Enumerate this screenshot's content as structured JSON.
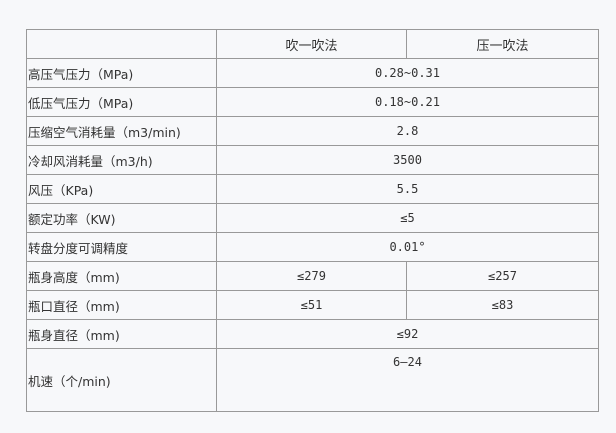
{
  "header": {
    "blank": "",
    "col1": "吹一吹法",
    "col2": "压一吹法"
  },
  "rows": [
    {
      "label": "高压气压力（MPa)",
      "value": "0.28~0.31"
    },
    {
      "label": "低压气压力（MPa)",
      "value": "0.18~0.21"
    },
    {
      "label": "压缩空气消耗量（m3/min)",
      "value": "2.8"
    },
    {
      "label": "冷却风消耗量（m3/h)",
      "value": "3500"
    },
    {
      "label": "风压（KPa)",
      "value": "5.5"
    },
    {
      "label": "额定功率（KW)",
      "value": "≤5"
    },
    {
      "label": "转盘分度可调精度",
      "value": "0.01°"
    },
    {
      "label": "瓶身高度（mm)",
      "v1": "≤279",
      "v2": "≤257"
    },
    {
      "label": "瓶口直径（mm)",
      "v1": "≤51",
      "v2": "≤83"
    },
    {
      "label": "瓶身直径（mm)",
      "value": "≤92"
    },
    {
      "label": "机速（个/min)",
      "value": "6—24"
    }
  ]
}
